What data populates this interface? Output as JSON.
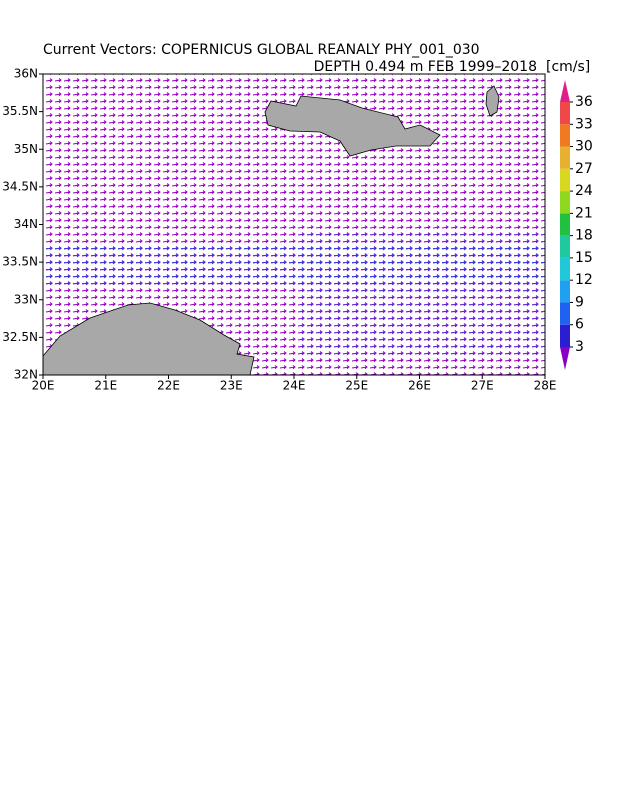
{
  "chart_data": {
    "type": "vector",
    "title": "Current Vectors: COPERNICUS GLOBAL REANALY PHY_001_030",
    "subtitle": "DEPTH 0.494 m  FEB 1999–2018",
    "unit": "[cm/s]",
    "xlim": [
      20,
      28
    ],
    "ylim": [
      32,
      36
    ],
    "xticks": [
      {
        "value": 20,
        "label": "20E"
      },
      {
        "value": 21,
        "label": "21E"
      },
      {
        "value": 22,
        "label": "22E"
      },
      {
        "value": 23,
        "label": "23E"
      },
      {
        "value": 24,
        "label": "24E"
      },
      {
        "value": 25,
        "label": "25E"
      },
      {
        "value": 26,
        "label": "26E"
      },
      {
        "value": 27,
        "label": "27E"
      },
      {
        "value": 28,
        "label": "28E"
      }
    ],
    "yticks": [
      {
        "value": 32,
        "label": "32N"
      },
      {
        "value": 32.5,
        "label": "32.5N"
      },
      {
        "value": 33,
        "label": "33N"
      },
      {
        "value": 33.5,
        "label": "33.5N"
      },
      {
        "value": 34,
        "label": "34N"
      },
      {
        "value": 34.5,
        "label": "34.5N"
      },
      {
        "value": 35,
        "label": "35N"
      },
      {
        "value": 35.5,
        "label": "35.5N"
      },
      {
        "value": 36,
        "label": "36N"
      }
    ],
    "colorbar": {
      "lim": [
        3,
        36
      ],
      "ticks": [
        3,
        6,
        9,
        12,
        15,
        18,
        21,
        24,
        27,
        30,
        33,
        36
      ],
      "colors": [
        "#8a00c8",
        "#2a1ed0",
        "#1f62f0",
        "#1fa0f0",
        "#20c8d8",
        "#20c8a0",
        "#20c040",
        "#90d820",
        "#d8d820",
        "#e8b030",
        "#f07a20",
        "#f04848",
        "#e0208a"
      ]
    }
  }
}
